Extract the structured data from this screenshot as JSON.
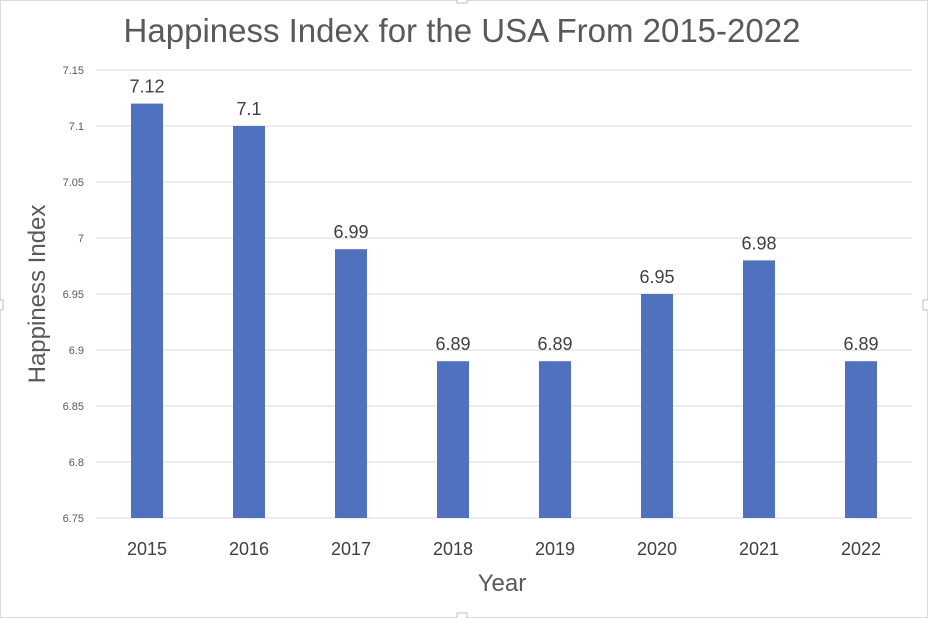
{
  "chart_data": {
    "type": "bar",
    "title": "Happiness Index for the USA From 2015-2022",
    "xlabel": "Year",
    "ylabel": "Happiness Index",
    "categories": [
      "2015",
      "2016",
      "2017",
      "2018",
      "2019",
      "2020",
      "2021",
      "2022"
    ],
    "values": [
      7.12,
      7.1,
      6.99,
      6.89,
      6.89,
      6.95,
      6.98,
      6.89
    ],
    "data_labels": [
      "7.12",
      "7.1",
      "6.99",
      "6.89",
      "6.89",
      "6.95",
      "6.98",
      "6.89"
    ],
    "ylim": [
      6.75,
      7.15
    ],
    "yticks": [
      "6.75",
      "6.8",
      "6.85",
      "6.9",
      "6.95",
      "7",
      "7.05",
      "7.1",
      "7.15"
    ],
    "grid": true,
    "bar_color": "#4f71be"
  }
}
